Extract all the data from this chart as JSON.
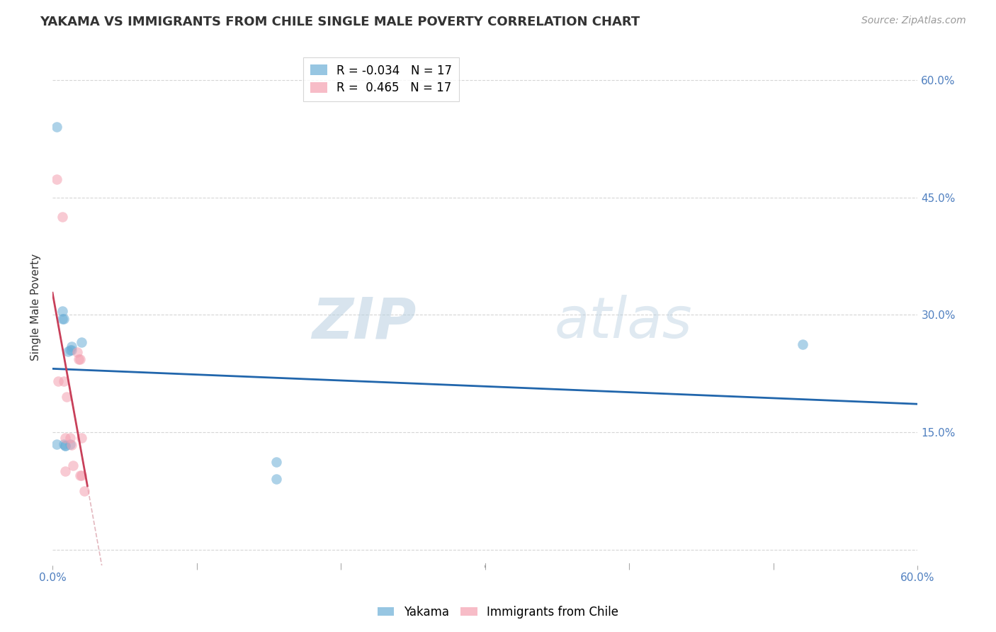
{
  "title": "YAKAMA VS IMMIGRANTS FROM CHILE SINGLE MALE POVERTY CORRELATION CHART",
  "source": "Source: ZipAtlas.com",
  "ylabel": "Single Male Poverty",
  "ytick_values": [
    0.0,
    0.15,
    0.3,
    0.45,
    0.6
  ],
  "ytick_labels": [
    "",
    "15.0%",
    "30.0%",
    "45.0%",
    "60.0%"
  ],
  "xlim": [
    0.0,
    0.6
  ],
  "ylim": [
    -0.02,
    0.64
  ],
  "yakama_x": [
    0.003,
    0.003,
    0.007,
    0.007,
    0.008,
    0.008,
    0.009,
    0.009,
    0.011,
    0.012,
    0.012,
    0.013,
    0.013,
    0.02,
    0.155,
    0.155,
    0.52
  ],
  "yakama_y": [
    0.54,
    0.135,
    0.305,
    0.295,
    0.295,
    0.135,
    0.133,
    0.133,
    0.253,
    0.255,
    0.135,
    0.26,
    0.255,
    0.265,
    0.112,
    0.09,
    0.262
  ],
  "chile_x": [
    0.003,
    0.004,
    0.007,
    0.008,
    0.009,
    0.009,
    0.01,
    0.012,
    0.013,
    0.014,
    0.017,
    0.018,
    0.019,
    0.019,
    0.02,
    0.02,
    0.022
  ],
  "chile_y": [
    0.473,
    0.215,
    0.425,
    0.215,
    0.143,
    0.1,
    0.195,
    0.143,
    0.134,
    0.108,
    0.252,
    0.243,
    0.095,
    0.243,
    0.143,
    0.095,
    0.075
  ],
  "yakama_color": "#6baed6",
  "chile_color": "#f4a0b0",
  "yakama_line_color": "#2166ac",
  "chile_line_color": "#c8405a",
  "diagonal_color": "#e0b0b8",
  "background_color": "#ffffff",
  "grid_color": "#cccccc",
  "marker_size": 110,
  "marker_alpha": 0.55,
  "legend1_label": "R = -0.034   N = 17",
  "legend2_label": "R =  0.465   N = 17"
}
